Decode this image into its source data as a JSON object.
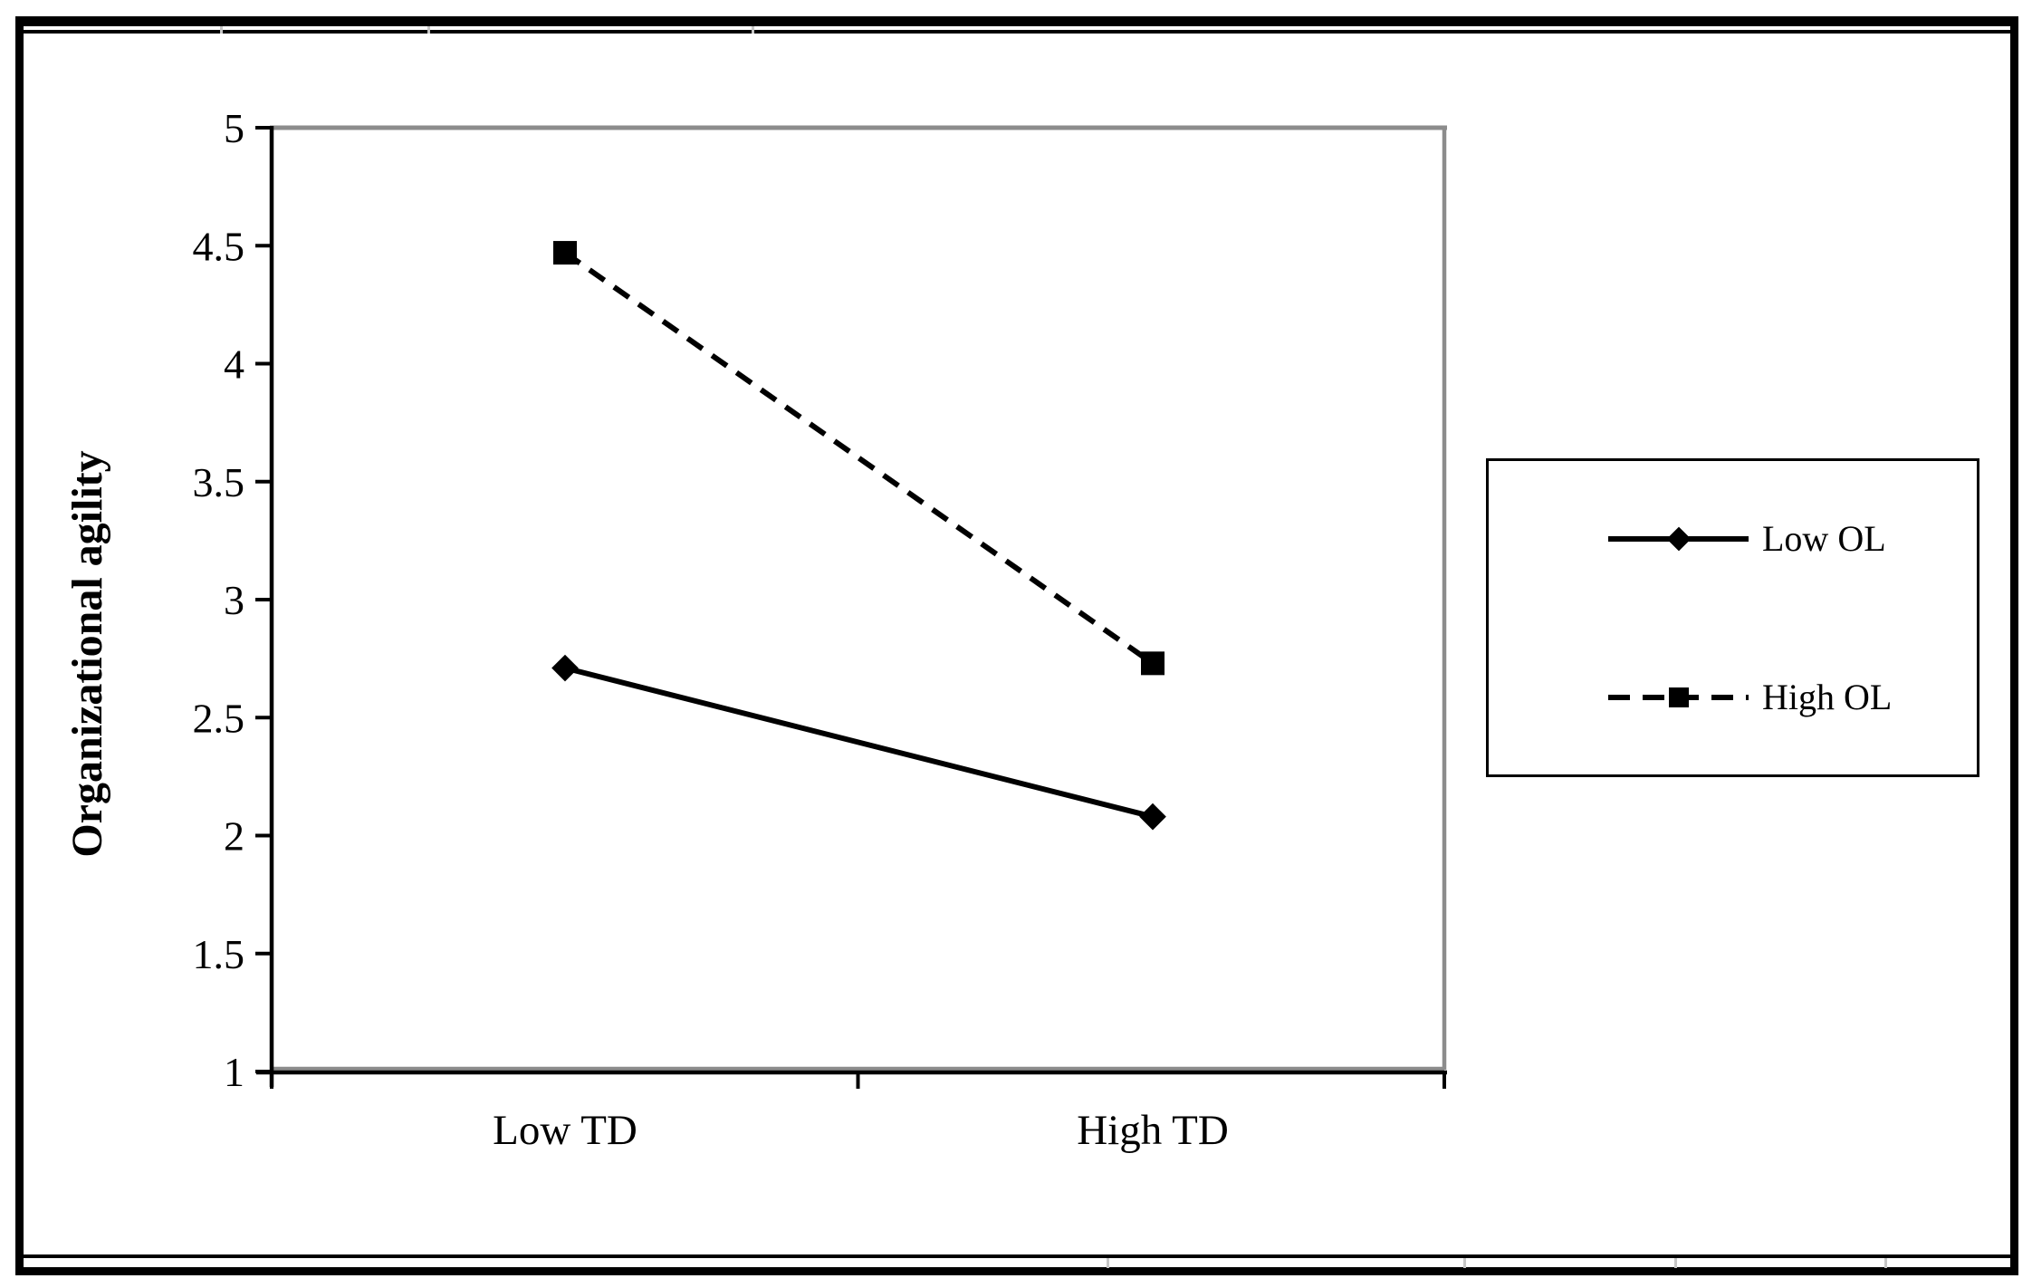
{
  "chart_data": {
    "type": "line",
    "title": "",
    "categories": [
      "Low TD",
      "High TD"
    ],
    "series": [
      {
        "name": "Low OL",
        "values": [
          2.71,
          2.08
        ],
        "line_style": "solid",
        "marker": "diamond",
        "color": "#000000"
      },
      {
        "name": "High OL",
        "values": [
          4.47,
          2.73
        ],
        "line_style": "dashed",
        "marker": "square",
        "color": "#000000"
      }
    ],
    "xlabel": "",
    "ylabel": "Organizational agility",
    "ylim": [
      1,
      5
    ],
    "yticks": [
      1,
      1.5,
      2,
      2.5,
      3,
      3.5,
      4,
      4.5,
      5
    ],
    "ytick_labels": [
      "1",
      "1.5",
      "2",
      "2.5",
      "3",
      "3.5",
      "4",
      "4.5",
      "5"
    ],
    "grid": false,
    "legend_position": "right-outside",
    "axis_color": "#000000",
    "plot_border_color": "#8c8c8c",
    "background_color": "#ffffff"
  }
}
